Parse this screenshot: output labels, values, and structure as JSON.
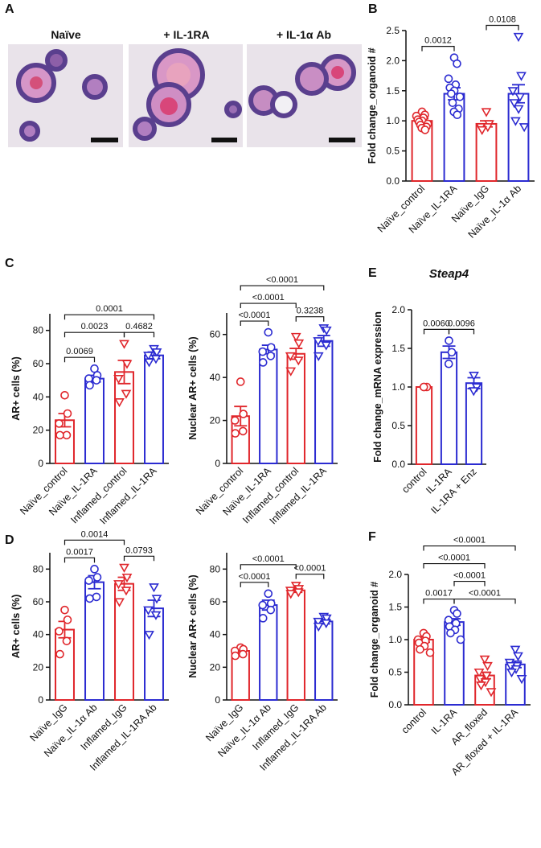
{
  "images": {
    "label": "A",
    "titles": [
      "Naïve",
      "+ IL-1RA",
      "+ IL-1α Ab"
    ]
  },
  "chart_data": [
    {
      "type": "bar",
      "panel": "B",
      "ylabel": "Fold change_organoid #",
      "categories": [
        "Naïve_control",
        "Naïve_IL-1RA",
        "Naïve_IgG",
        "Naïve_IL-1α Ab"
      ],
      "values": [
        1.0,
        1.45,
        0.95,
        1.45
      ],
      "errors": [
        0.04,
        0.1,
        0.05,
        0.15
      ],
      "colors": [
        "#e0262b",
        "#2b2bd1",
        "#e0262b",
        "#2b2bd1"
      ],
      "markers": [
        "circle",
        "circle",
        "triangle",
        "triangle"
      ],
      "points": [
        [
          1.15,
          1.1,
          1.08,
          1.05,
          1.02,
          1.0,
          0.98,
          0.95,
          0.93,
          0.9,
          0.88,
          0.85
        ],
        [
          2.05,
          1.95,
          1.7,
          1.6,
          1.55,
          1.5,
          1.45,
          1.4,
          1.3,
          1.2,
          1.15,
          1.1
        ],
        [
          1.15,
          0.95,
          0.9,
          0.9,
          0.85
        ],
        [
          2.4,
          1.75,
          1.5,
          1.4,
          1.3,
          1.2,
          1.0,
          0.9
        ]
      ],
      "ylim": [
        0,
        2.5
      ],
      "yticks": [
        {
          "value": 0,
          "label": "0.0"
        },
        0.5,
        {
          "value": 1,
          "label": "1.0"
        },
        1.5,
        {
          "value": 2,
          "label": "2.0"
        },
        2.5
      ],
      "comparisons": [
        {
          "between": [
            0,
            1
          ],
          "label": "0.0012"
        },
        {
          "between": [
            2,
            3
          ],
          "label": "0.0108"
        }
      ]
    },
    {
      "type": "bar",
      "panel": "C",
      "ylabel": "AR+ cells (%)",
      "categories": [
        "Naïve_control",
        "Naïve_IL-1RA",
        "Inflamed_control",
        "Inflamed_IL-1RA"
      ],
      "values": [
        26,
        51,
        55,
        65
      ],
      "errors": [
        4,
        2,
        7,
        2
      ],
      "colors": [
        "#e0262b",
        "#2b2bd1",
        "#e0262b",
        "#2b2bd1"
      ],
      "markers": [
        "circle",
        "circle",
        "triangle",
        "triangle"
      ],
      "points": [
        [
          41,
          30,
          24,
          17,
          17
        ],
        [
          57,
          53,
          51,
          50,
          47
        ],
        [
          72,
          60,
          51,
          42,
          37
        ],
        [
          69,
          67,
          65,
          63,
          61
        ]
      ],
      "ylim": [
        0,
        90
      ],
      "yticks": [
        0,
        20,
        40,
        60,
        80
      ],
      "comparisons": [
        {
          "between": [
            0,
            1
          ],
          "label": "0.0069"
        },
        {
          "between": [
            2,
            3
          ],
          "label": "0.4682"
        },
        {
          "between": [
            0,
            2
          ],
          "label": "0.0023"
        },
        {
          "between": [
            0,
            3
          ],
          "label": "0.0001"
        }
      ]
    },
    {
      "type": "bar",
      "ylabel": "Nuclear AR+ cells (%)",
      "categories": [
        "Naïve_control",
        "Naïve_IL-1RA",
        "Inflamed_control",
        "Inflamed_IL-1RA"
      ],
      "values": [
        22,
        53,
        51,
        57
      ],
      "errors": [
        4.5,
        2,
        2.5,
        2.5
      ],
      "colors": [
        "#e0262b",
        "#2b2bd1",
        "#e0262b",
        "#2b2bd1"
      ],
      "markers": [
        "circle",
        "circle",
        "triangle",
        "triangle"
      ],
      "points": [
        [
          38,
          23,
          20,
          15,
          14
        ],
        [
          61,
          54,
          52,
          50,
          47
        ],
        [
          59,
          56,
          50,
          48,
          43
        ],
        [
          63,
          62,
          57,
          55,
          50
        ]
      ],
      "ylim": [
        0,
        70
      ],
      "yticks": [
        0,
        20,
        40,
        60
      ],
      "comparisons": [
        {
          "between": [
            0,
            1
          ],
          "label": "<0.0001"
        },
        {
          "between": [
            2,
            3
          ],
          "label": "0.3238"
        },
        {
          "between": [
            0,
            2
          ],
          "label": "<0.0001"
        },
        {
          "between": [
            0,
            3
          ],
          "label": "<0.0001"
        }
      ]
    },
    {
      "type": "bar",
      "panel": "E",
      "title": "Steap4",
      "ylabel": "Fold change_mRNA expression",
      "categories": [
        "control",
        "IL-1RA",
        "IL-1RA + Enz"
      ],
      "values": [
        1.0,
        1.45,
        1.05
      ],
      "errors": [
        0,
        0.08,
        0.07
      ],
      "colors": [
        "#e0262b",
        "#2b2bd1",
        "#2b2bd1"
      ],
      "markers": [
        "circle",
        "circle",
        "triangle"
      ],
      "points": [
        [
          1.0,
          1.0,
          1.0
        ],
        [
          1.6,
          1.45,
          1.3
        ],
        [
          1.15,
          1.0,
          0.95
        ]
      ],
      "ylim": [
        0,
        2
      ],
      "yticks": [
        {
          "value": 0,
          "label": "0.0"
        },
        0.5,
        {
          "value": 1,
          "label": "1.0"
        },
        1.5,
        {
          "value": 2,
          "label": "2.0"
        }
      ],
      "comparisons": [
        {
          "between": [
            0,
            1
          ],
          "label": "0.0060"
        },
        {
          "between": [
            1,
            2
          ],
          "label": "0.0096"
        }
      ]
    },
    {
      "type": "bar",
      "panel": "D",
      "ylabel": "AR+ cells (%)",
      "categories": [
        "Naïve_IgG",
        "Naïve_IL-1α Ab",
        "Inflamed_IgG",
        "Inflamed_IL-1RA Ab"
      ],
      "values": [
        43,
        72,
        71,
        56
      ],
      "errors": [
        5,
        4,
        4,
        5
      ],
      "colors": [
        "#e0262b",
        "#2b2bd1",
        "#e0262b",
        "#2b2bd1"
      ],
      "markers": [
        "circle",
        "circle",
        "triangle",
        "triangle"
      ],
      "points": [
        [
          55,
          49,
          42,
          36,
          28
        ],
        [
          80,
          75,
          73,
          63,
          62
        ],
        [
          81,
          75,
          71,
          67,
          60
        ],
        [
          69,
          62,
          55,
          52,
          40
        ]
      ],
      "ylim": [
        0,
        90
      ],
      "yticks": [
        0,
        20,
        40,
        60,
        80
      ],
      "comparisons": [
        {
          "between": [
            0,
            1
          ],
          "label": "0.0017"
        },
        {
          "between": [
            2,
            3
          ],
          "label": "0.0793"
        },
        {
          "between": [
            0,
            2
          ],
          "label": "0.0014"
        }
      ]
    },
    {
      "type": "bar",
      "ylabel": "Nuclear AR+ cells (%)",
      "categories": [
        "Naïve_IgG",
        "Naïve_IL-1α Ab",
        "Inflamed_IgG",
        "Inflamed_IL-1RA Ab"
      ],
      "values": [
        30,
        58,
        67,
        48
      ],
      "errors": [
        1.2,
        3,
        1.2,
        1.5
      ],
      "colors": [
        "#e0262b",
        "#2b2bd1",
        "#e0262b",
        "#2b2bd1"
      ],
      "markers": [
        "circle",
        "circle",
        "triangle",
        "triangle"
      ],
      "points": [
        [
          32,
          31,
          30,
          28,
          27
        ],
        [
          65,
          59,
          58,
          55,
          50
        ],
        [
          70,
          68,
          67,
          66,
          65
        ],
        [
          51,
          50,
          48,
          47,
          45
        ]
      ],
      "ylim": [
        0,
        90
      ],
      "yticks": [
        0,
        20,
        40,
        60,
        80
      ],
      "comparisons": [
        {
          "between": [
            0,
            1
          ],
          "label": "<0.0001"
        },
        {
          "between": [
            2,
            3
          ],
          "label": "<0.0001"
        },
        {
          "between": [
            0,
            2
          ],
          "label": "<0.0001"
        }
      ]
    },
    {
      "type": "bar",
      "panel": "F",
      "ylabel": "Fold change_organoid #",
      "categories": [
        "control",
        "IL-1RA",
        "AR_floxed",
        "AR_floxed + IL-1RA"
      ],
      "values": [
        1.0,
        1.27,
        0.45,
        0.62
      ],
      "errors": [
        0.04,
        0.05,
        0.05,
        0.05
      ],
      "colors": [
        "#e0262b",
        "#2b2bd1",
        "#e0262b",
        "#2b2bd1"
      ],
      "markers": [
        "circle",
        "circle",
        "triangle",
        "triangle"
      ],
      "points": [
        [
          1.1,
          1.05,
          1.0,
          0.98,
          0.95,
          0.9,
          0.85,
          0.8
        ],
        [
          1.45,
          1.4,
          1.3,
          1.25,
          1.2,
          1.15,
          1.1,
          1.0
        ],
        [
          0.7,
          0.6,
          0.5,
          0.45,
          0.4,
          0.35,
          0.3,
          0.2
        ],
        [
          0.85,
          0.75,
          0.65,
          0.6,
          0.6,
          0.55,
          0.5,
          0.4
        ]
      ],
      "ylim": [
        0,
        2
      ],
      "yticks": [
        {
          "value": 0,
          "label": "0.0"
        },
        0.5,
        {
          "value": 1,
          "label": "1.0"
        },
        1.5,
        {
          "value": 2,
          "label": "2.0"
        }
      ],
      "comparisons": [
        {
          "between": [
            0,
            1
          ],
          "label": "0.0017"
        },
        {
          "between": [
            1,
            3
          ],
          "label": "<0.0001"
        },
        {
          "between": [
            1,
            2
          ],
          "label": "<0.0001"
        },
        {
          "between": [
            0,
            2
          ],
          "label": "<0.0001"
        },
        {
          "between": [
            0,
            3
          ],
          "label": "<0.0001"
        }
      ]
    }
  ]
}
